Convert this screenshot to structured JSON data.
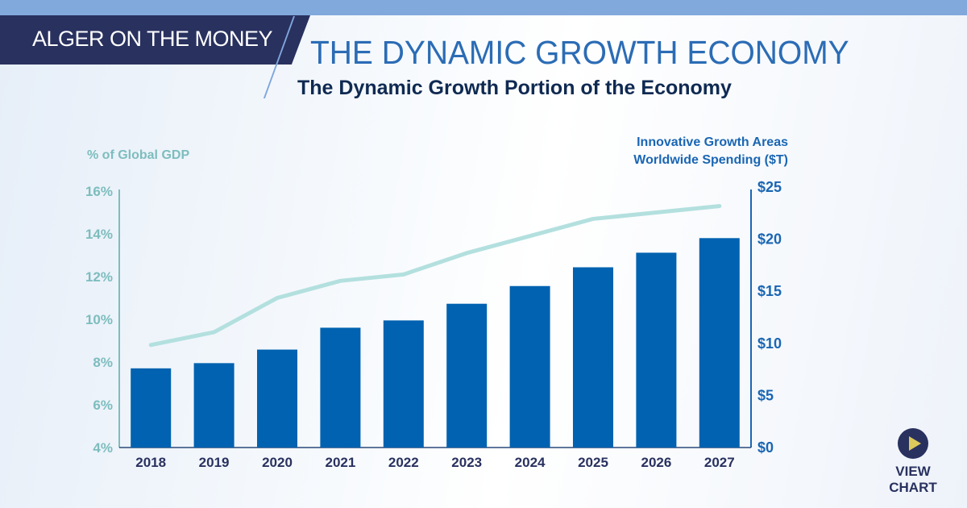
{
  "header": {
    "banner": "ALGER ON THE MONEY",
    "title": "THE DYNAMIC GROWTH ECONOMY"
  },
  "view_chart": {
    "label": "VIEW CHART",
    "icon": "play-icon"
  },
  "colors": {
    "bars": "#0062b0",
    "line": "#b3e0df",
    "left_axis": "#7dbdbe",
    "right_axis": "#1a66b4",
    "banner": "#29315f"
  },
  "chart_data": {
    "type": "bar+line",
    "title": "The Dynamic Growth Portion of the Economy",
    "categories": [
      "2018",
      "2019",
      "2020",
      "2021",
      "2022",
      "2023",
      "2024",
      "2025",
      "2026",
      "2027"
    ],
    "y_left": {
      "label": "% of Global GDP",
      "range": [
        4,
        16
      ],
      "ticks": [
        "4%",
        "6%",
        "8%",
        "10%",
        "12%",
        "14%",
        "16%"
      ]
    },
    "y_right": {
      "label_lines": [
        "Innovative Growth Areas",
        "Worldwide Spending ($T)"
      ],
      "range": [
        0,
        25
      ],
      "ticks": [
        "$0",
        "$5",
        "$10",
        "$15",
        "$20",
        "$25"
      ]
    },
    "series": [
      {
        "type": "bar",
        "axis": "right",
        "values": [
          7.6,
          8.1,
          9.4,
          11.5,
          12.2,
          13.8,
          15.5,
          17.3,
          18.7,
          20.1
        ]
      },
      {
        "type": "line",
        "axis": "left",
        "values": [
          8.8,
          9.4,
          11.0,
          11.8,
          12.1,
          13.1,
          13.9,
          14.7,
          15.0,
          15.3
        ]
      }
    ],
    "grid": false
  }
}
